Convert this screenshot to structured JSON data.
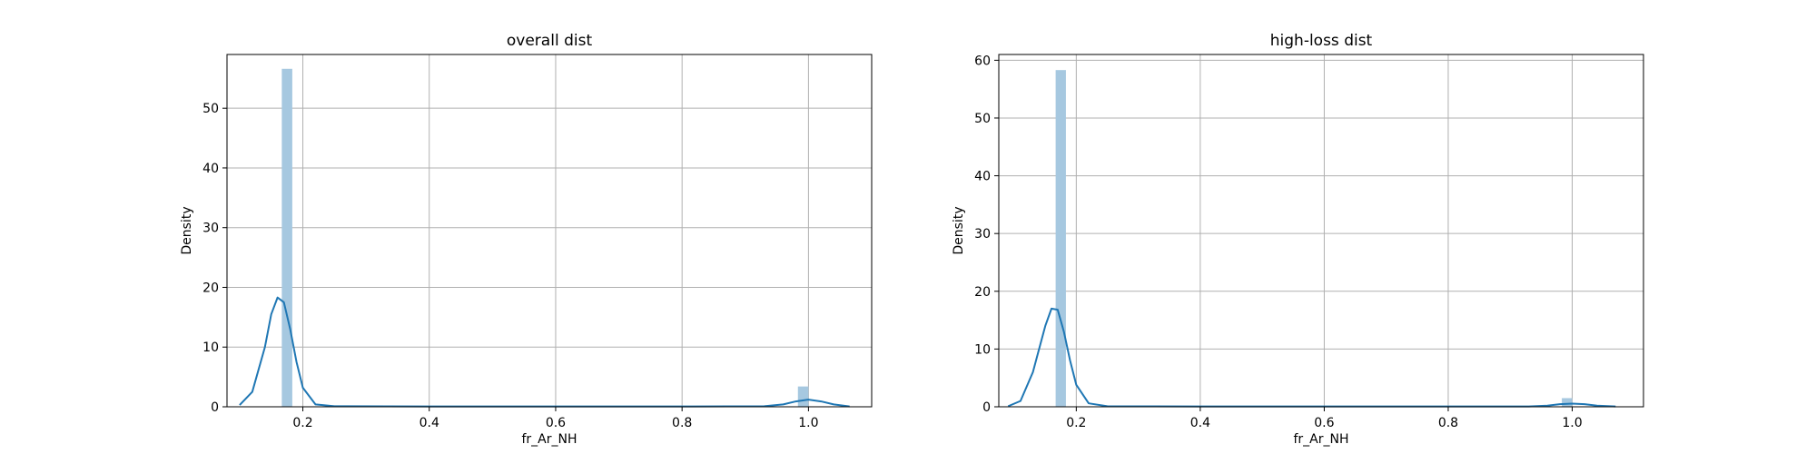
{
  "figure": {
    "background": "#ffffff"
  },
  "chart_data": [
    {
      "type": "histogram+kde",
      "title": "overall dist",
      "xlabel": "fr_Ar_NH",
      "ylabel": "Density",
      "xlim": [
        0.08,
        1.1
      ],
      "ylim": [
        0,
        59
      ],
      "xticks": [
        0.2,
        0.4,
        0.6,
        0.8,
        1.0
      ],
      "xtick_labels": [
        "0.2",
        "0.4",
        "0.6",
        "0.8",
        "1.0"
      ],
      "yticks": [
        0,
        10,
        20,
        30,
        40,
        50
      ],
      "ytick_labels": [
        "0",
        "10",
        "20",
        "30",
        "40",
        "50"
      ],
      "grid": true,
      "bar_color": "#a6c8e0",
      "line_color": "#1f77b4",
      "bars": [
        {
          "x0": 0.1667,
          "x1": 0.1833,
          "value": 56.6
        },
        {
          "x0": 0.9833,
          "x1": 1.0,
          "value": 3.4
        }
      ],
      "kde": [
        [
          0.1,
          0.3
        ],
        [
          0.12,
          2.5
        ],
        [
          0.14,
          10.0
        ],
        [
          0.15,
          15.5
        ],
        [
          0.16,
          18.3
        ],
        [
          0.17,
          17.5
        ],
        [
          0.18,
          13.0
        ],
        [
          0.19,
          7.5
        ],
        [
          0.2,
          3.2
        ],
        [
          0.22,
          0.4
        ],
        [
          0.25,
          0.1
        ],
        [
          0.4,
          0.05
        ],
        [
          0.6,
          0.05
        ],
        [
          0.8,
          0.05
        ],
        [
          0.93,
          0.1
        ],
        [
          0.96,
          0.4
        ],
        [
          0.98,
          0.9
        ],
        [
          1.0,
          1.2
        ],
        [
          1.02,
          0.9
        ],
        [
          1.04,
          0.4
        ],
        [
          1.065,
          0.05
        ]
      ]
    },
    {
      "type": "histogram+kde",
      "title": "high-loss dist",
      "xlabel": "fr_Ar_NH",
      "ylabel": "Density",
      "xlim": [
        0.075,
        1.115
      ],
      "ylim": [
        0,
        61
      ],
      "xticks": [
        0.2,
        0.4,
        0.6,
        0.8,
        1.0
      ],
      "xtick_labels": [
        "0.2",
        "0.4",
        "0.6",
        "0.8",
        "1.0"
      ],
      "yticks": [
        0,
        10,
        20,
        30,
        40,
        50,
        60
      ],
      "ytick_labels": [
        "0",
        "10",
        "20",
        "30",
        "40",
        "50",
        "60"
      ],
      "grid": true,
      "bar_color": "#a6c8e0",
      "line_color": "#1f77b4",
      "bars": [
        {
          "x0": 0.1667,
          "x1": 0.1833,
          "value": 58.3
        },
        {
          "x0": 0.9833,
          "x1": 1.0,
          "value": 1.5
        }
      ],
      "kde": [
        [
          0.09,
          0.1
        ],
        [
          0.11,
          1.0
        ],
        [
          0.13,
          6.0
        ],
        [
          0.15,
          14.0
        ],
        [
          0.16,
          17.0
        ],
        [
          0.17,
          16.8
        ],
        [
          0.18,
          13.0
        ],
        [
          0.19,
          8.0
        ],
        [
          0.2,
          3.8
        ],
        [
          0.22,
          0.6
        ],
        [
          0.25,
          0.1
        ],
        [
          0.4,
          0.05
        ],
        [
          0.6,
          0.05
        ],
        [
          0.8,
          0.05
        ],
        [
          0.93,
          0.05
        ],
        [
          0.96,
          0.2
        ],
        [
          0.98,
          0.45
        ],
        [
          1.0,
          0.55
        ],
        [
          1.02,
          0.45
        ],
        [
          1.04,
          0.2
        ],
        [
          1.07,
          0.05
        ]
      ]
    }
  ]
}
